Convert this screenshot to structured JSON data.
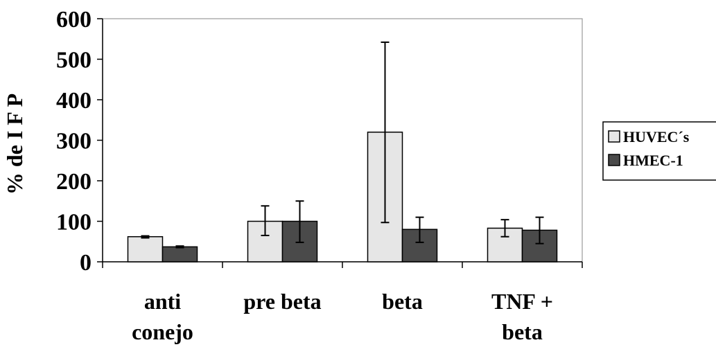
{
  "chart_data": {
    "type": "bar",
    "title": "",
    "xlabel": "",
    "ylabel": "% de I F P",
    "ylim": [
      0,
      600
    ],
    "yticks": [
      "0",
      "100",
      "200",
      "300",
      "400",
      "500",
      "600"
    ],
    "categories": [
      [
        "anti",
        "conejo"
      ],
      [
        "pre beta"
      ],
      [
        "beta"
      ],
      [
        "TNF +",
        "beta"
      ]
    ],
    "series": [
      {
        "name": "HUVEC´s",
        "color": "#e6e6e6",
        "values": [
          62,
          100,
          320,
          83
        ],
        "error_low": [
          59,
          65,
          97,
          62
        ],
        "error_high": [
          64,
          138,
          542,
          104
        ]
      },
      {
        "name": "HMEC-1",
        "color": "#4a4a4a",
        "values": [
          37,
          100,
          80,
          78
        ],
        "error_low": [
          35,
          48,
          48,
          45
        ],
        "error_high": [
          39,
          150,
          110,
          110
        ]
      }
    ],
    "grid": false,
    "legend_position": "right"
  }
}
